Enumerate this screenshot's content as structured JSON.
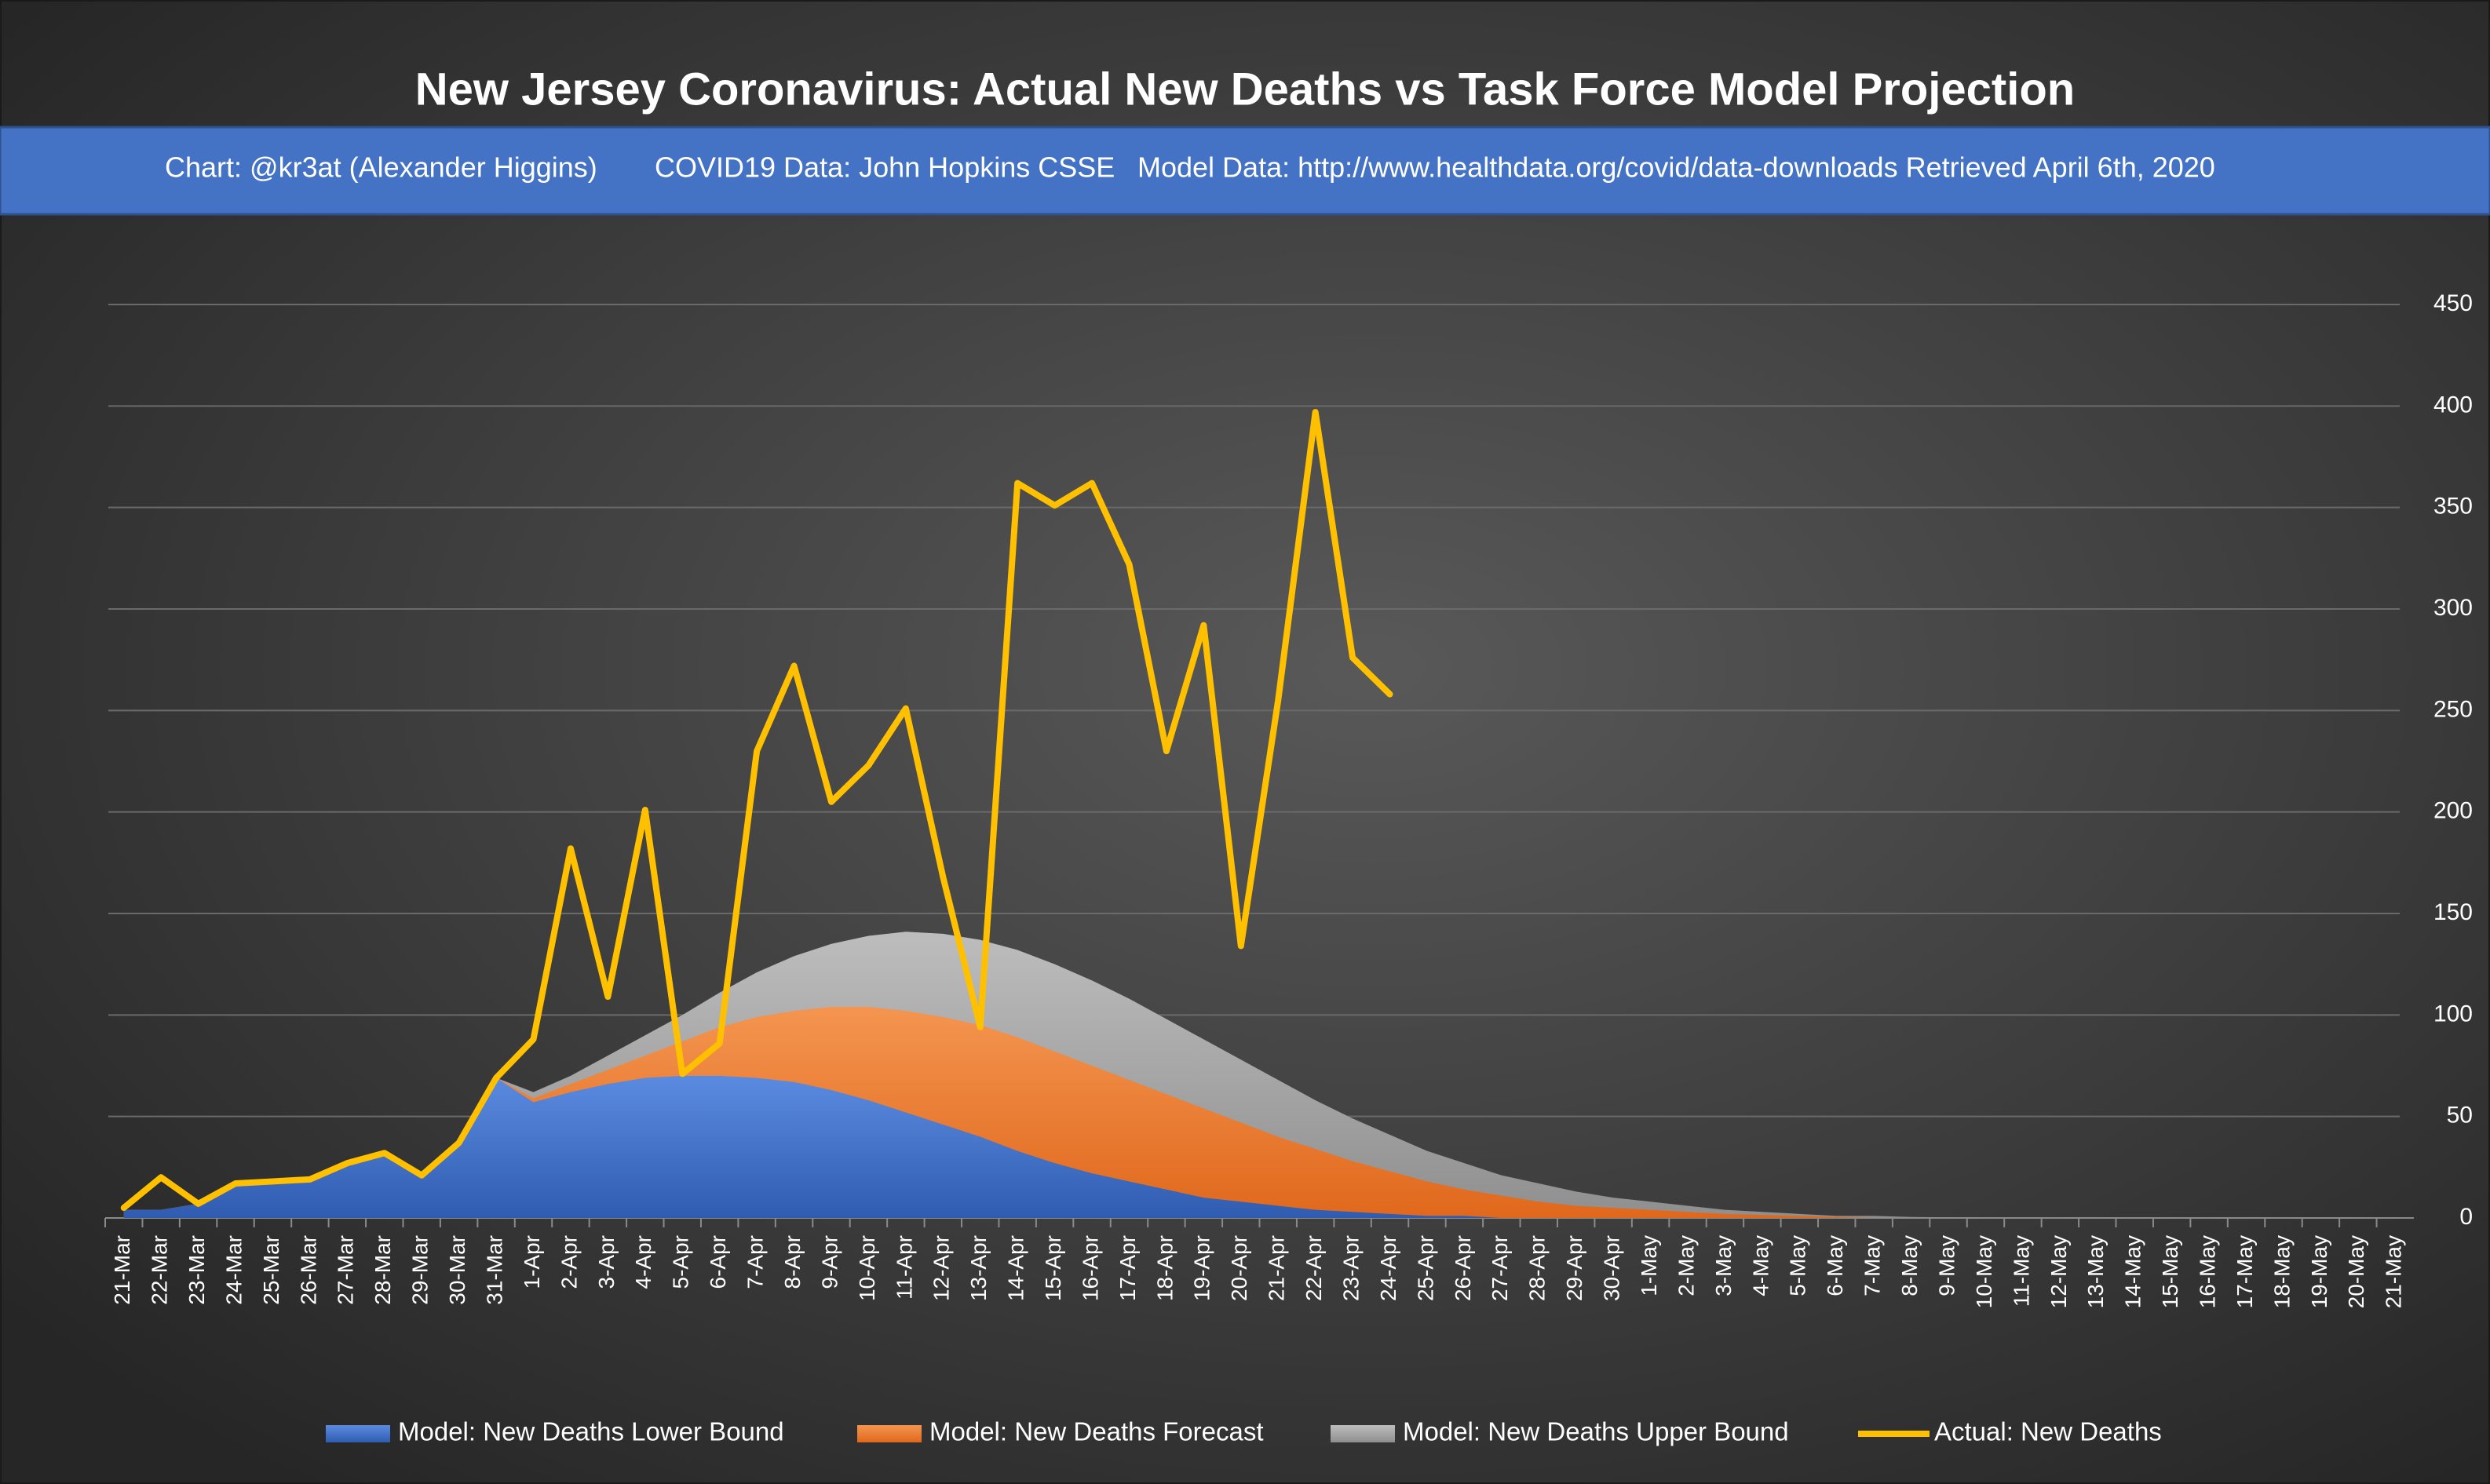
{
  "chart_data": {
    "type": "area",
    "title": "New Jersey Coronavirus: Actual New Deaths vs Task Force Model Projection",
    "credits": [
      "Chart: @kr3at (Alexander Higgins)",
      "COVID19 Data: John Hopkins CSSE",
      "Model Data: http://www.healthdata.org/covid/data-downloads Retrieved April 6th, 2020"
    ],
    "categories": [
      "21-Mar",
      "22-Mar",
      "23-Mar",
      "24-Mar",
      "25-Mar",
      "26-Mar",
      "27-Mar",
      "28-Mar",
      "29-Mar",
      "30-Mar",
      "31-Mar",
      "1-Apr",
      "2-Apr",
      "3-Apr",
      "4-Apr",
      "5-Apr",
      "6-Apr",
      "7-Apr",
      "8-Apr",
      "9-Apr",
      "10-Apr",
      "11-Apr",
      "12-Apr",
      "13-Apr",
      "14-Apr",
      "15-Apr",
      "16-Apr",
      "17-Apr",
      "18-Apr",
      "19-Apr",
      "20-Apr",
      "21-Apr",
      "22-Apr",
      "23-Apr",
      "24-Apr",
      "25-Apr",
      "26-Apr",
      "27-Apr",
      "28-Apr",
      "29-Apr",
      "30-Apr",
      "1-May",
      "2-May",
      "3-May",
      "4-May",
      "5-May",
      "6-May",
      "7-May",
      "8-May",
      "9-May",
      "10-May",
      "11-May",
      "12-May",
      "13-May",
      "14-May",
      "15-May",
      "16-May",
      "17-May",
      "18-May",
      "19-May",
      "20-May",
      "21-May"
    ],
    "series": [
      {
        "name": "Model: New Deaths Lower Bound",
        "type": "area",
        "color": "#4472c4",
        "values": [
          4,
          4,
          7,
          17,
          18,
          19,
          27,
          32,
          21,
          37,
          69,
          57,
          62,
          66,
          69,
          70,
          70,
          69,
          67,
          63,
          58,
          52,
          46,
          40,
          33,
          27,
          22,
          18,
          14,
          10,
          8,
          6,
          4,
          3,
          2,
          1,
          1,
          0,
          0,
          0,
          0,
          0,
          0,
          0,
          0,
          0,
          0,
          0,
          0,
          0,
          0,
          0,
          0,
          0,
          0,
          0,
          0,
          0,
          0,
          0,
          0,
          0
        ]
      },
      {
        "name": "Model: New Deaths Forecast",
        "type": "area",
        "color": "#ed7d31",
        "values": [
          4,
          4,
          7,
          17,
          18,
          19,
          27,
          32,
          21,
          37,
          69,
          59,
          66,
          73,
          80,
          87,
          94,
          99,
          102,
          104,
          104,
          102,
          99,
          95,
          89,
          82,
          75,
          68,
          61,
          54,
          47,
          40,
          34,
          28,
          23,
          18,
          14,
          11,
          8,
          6,
          5,
          4,
          3,
          2,
          1.5,
          1,
          0.5,
          0,
          0,
          0,
          0,
          0,
          0,
          0,
          0,
          0,
          0,
          0,
          0,
          0,
          0,
          0
        ]
      },
      {
        "name": "Model: New Deaths Upper Bound",
        "type": "area",
        "color": "#a5a5a5",
        "values": [
          4,
          4,
          7,
          17,
          18,
          19,
          27,
          32,
          21,
          37,
          69,
          62,
          70,
          80,
          90,
          100,
          111,
          121,
          129,
          135,
          139,
          141,
          140,
          137,
          132,
          125,
          117,
          108,
          98,
          88,
          78,
          68,
          58,
          49,
          41,
          33,
          27,
          21,
          17,
          13,
          10,
          8,
          6,
          4,
          3,
          2,
          1,
          1,
          0.5,
          0.3,
          0,
          0,
          0,
          0,
          0,
          0,
          0,
          0,
          0,
          0,
          0,
          0
        ]
      },
      {
        "name": "Actual: New Deaths",
        "type": "line",
        "color": "#ffc000",
        "values": [
          5,
          20,
          7,
          17,
          18,
          19,
          27,
          32,
          21,
          37,
          69,
          88,
          182,
          109,
          201,
          71,
          86,
          230,
          272,
          205,
          223,
          251,
          168,
          94,
          362,
          351,
          362,
          322,
          230,
          292,
          134,
          255,
          397,
          276,
          258,
          null,
          null,
          null,
          null,
          null,
          null,
          null,
          null,
          null,
          null,
          null,
          null,
          null,
          null,
          null,
          null,
          null,
          null,
          null,
          null,
          null,
          null,
          null,
          null,
          null,
          null,
          null
        ]
      }
    ],
    "ylim": [
      0,
      450
    ],
    "yticks": [
      0,
      50,
      100,
      150,
      200,
      250,
      300,
      350,
      400,
      450
    ],
    "grid": true,
    "legend": "bottom"
  }
}
